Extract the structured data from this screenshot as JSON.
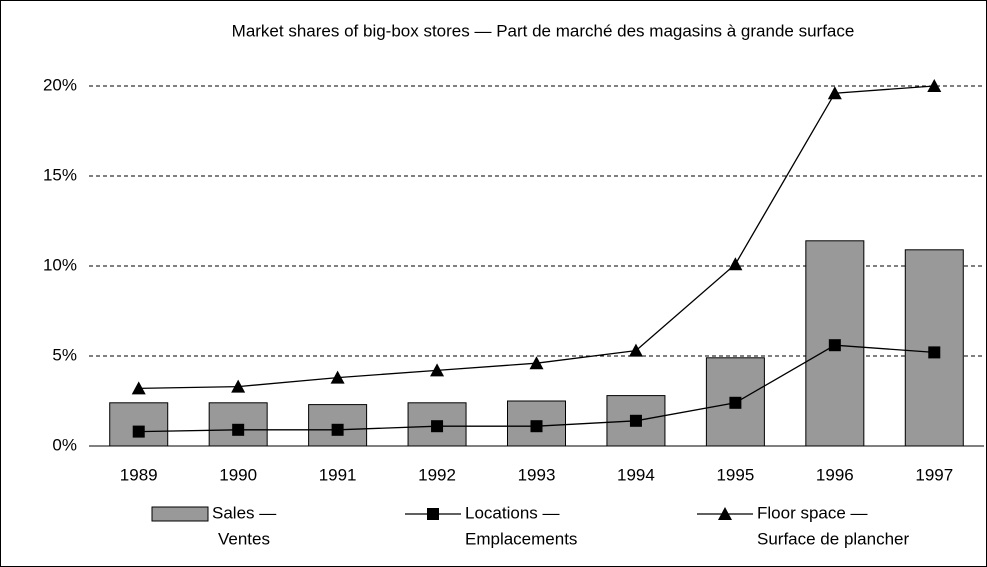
{
  "chart_data": {
    "type": "bar-line",
    "title": "Market shares of big-box stores — Part de marché des magasins à grande surface",
    "categories": [
      "1989",
      "1990",
      "1991",
      "1992",
      "1993",
      "1994",
      "1995",
      "1996",
      "1997"
    ],
    "series": [
      {
        "name": [
          "Sales —",
          "Ventes"
        ],
        "type": "bar",
        "color": "#999999",
        "values": [
          2.4,
          2.4,
          2.3,
          2.4,
          2.5,
          2.8,
          4.9,
          11.4,
          10.9
        ]
      },
      {
        "name": [
          "Locations —",
          "Emplacements"
        ],
        "type": "line",
        "marker": "square",
        "color": "#000000",
        "values": [
          0.8,
          0.9,
          0.9,
          1.1,
          1.1,
          1.4,
          2.4,
          5.6,
          5.2
        ]
      },
      {
        "name": [
          "Floor space —",
          "Surface de plancher"
        ],
        "type": "line",
        "marker": "triangle",
        "color": "#000000",
        "values": [
          3.2,
          3.3,
          3.8,
          4.2,
          4.6,
          5.3,
          10.1,
          19.6,
          20.0
        ]
      }
    ],
    "ylim": [
      0,
      20
    ],
    "yticks": [
      {
        "value": 0,
        "label": "0%"
      },
      {
        "value": 5,
        "label": "5%"
      },
      {
        "value": 10,
        "label": "10%"
      },
      {
        "value": 15,
        "label": "15%"
      },
      {
        "value": 20,
        "label": "20%"
      }
    ],
    "grid": true,
    "legend": "bottom"
  }
}
